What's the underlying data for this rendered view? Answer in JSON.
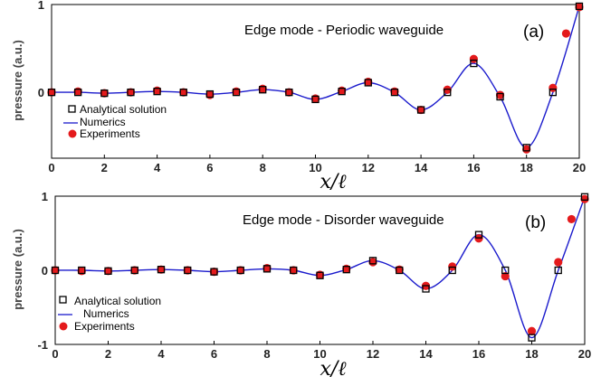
{
  "chart_data": [
    {
      "type": "line",
      "title": "Edge mode - Periodic waveguide",
      "panel_label": "(a)",
      "xlabel": "x/ℓ",
      "ylabel": "pressure (a.u.)",
      "xlim": [
        0,
        20
      ],
      "ylim": [
        -0.75,
        1.0
      ],
      "xticks": [
        0,
        2,
        4,
        6,
        8,
        10,
        12,
        14,
        16,
        18,
        20
      ],
      "yticks": [
        0,
        1
      ],
      "legend_position": "left",
      "colors": {
        "analytical": "#000000",
        "numerics": "#1a1acc",
        "experiments": "#e41a1c"
      },
      "series": [
        {
          "name": "Analytical solution",
          "marker": "open-square",
          "x": [
            0,
            1,
            2,
            3,
            4,
            5,
            6,
            7,
            8,
            9,
            10,
            11,
            12,
            13,
            14,
            15,
            16,
            17,
            18,
            19,
            20
          ],
          "y": [
            0,
            0,
            -0.01,
            0,
            0.01,
            0,
            -0.02,
            0,
            0.03,
            0,
            -0.08,
            0.01,
            0.11,
            0,
            -0.2,
            0,
            0.33,
            -0.05,
            -0.63,
            0,
            0.98
          ]
        },
        {
          "name": "Numerics",
          "marker": "line",
          "x": [
            0,
            1,
            2,
            3,
            4,
            5,
            6,
            7,
            8,
            9,
            10,
            11,
            12,
            13,
            14,
            15,
            16,
            17,
            18,
            19,
            20
          ],
          "y": [
            0,
            0,
            -0.01,
            0,
            0.01,
            0,
            -0.02,
            0,
            0.03,
            0,
            -0.08,
            0.01,
            0.11,
            0,
            -0.2,
            0,
            0.33,
            -0.05,
            -0.63,
            0,
            0.98
          ]
        },
        {
          "name": "Experiments",
          "marker": "filled-circle",
          "x": [
            0,
            1,
            2,
            3,
            4,
            5,
            6,
            7,
            8,
            9,
            10,
            11,
            12,
            13,
            14,
            15,
            16,
            17,
            18,
            19,
            19.5,
            20
          ],
          "y": [
            0,
            0.01,
            -0.01,
            0,
            0.02,
            0,
            -0.03,
            0.01,
            0.04,
            0,
            -0.07,
            0.02,
            0.12,
            0.01,
            -0.2,
            0.03,
            0.38,
            -0.03,
            -0.65,
            0.05,
            0.67,
            0.97
          ]
        }
      ]
    },
    {
      "type": "line",
      "title": "Edge mode - Disorder waveguide",
      "panel_label": "(b)",
      "xlabel": "x/ℓ",
      "ylabel": "pressure (a.u.)",
      "xlim": [
        0,
        20
      ],
      "ylim": [
        -1.0,
        1.0
      ],
      "xticks": [
        0,
        2,
        4,
        6,
        8,
        10,
        12,
        14,
        16,
        18,
        20
      ],
      "yticks": [
        -1,
        0,
        1
      ],
      "legend_position": "bottom-left",
      "colors": {
        "analytical": "#000000",
        "numerics": "#1a1acc",
        "experiments": "#e41a1c"
      },
      "series": [
        {
          "name": "Analytical solution",
          "marker": "open-square",
          "x": [
            0,
            1,
            2,
            3,
            4,
            5,
            6,
            7,
            8,
            9,
            10,
            11,
            12,
            13,
            14,
            15,
            16,
            17,
            18,
            19,
            20
          ],
          "y": [
            0,
            0,
            -0.01,
            0,
            0.01,
            0,
            -0.02,
            0,
            0.02,
            0,
            -0.07,
            0.01,
            0.13,
            0,
            -0.25,
            0,
            0.48,
            0,
            -0.91,
            0,
            0.99
          ]
        },
        {
          "name": "Numerics",
          "marker": "line",
          "x": [
            0,
            1,
            2,
            3,
            4,
            5,
            6,
            7,
            8,
            9,
            10,
            11,
            12,
            13,
            14,
            15,
            16,
            17,
            18,
            19,
            20
          ],
          "y": [
            0,
            0,
            -0.01,
            0,
            0.01,
            0,
            -0.02,
            0,
            0.02,
            0,
            -0.07,
            0.01,
            0.13,
            0,
            -0.25,
            0,
            0.48,
            0,
            -0.91,
            0,
            0.99
          ]
        },
        {
          "name": "Experiments",
          "marker": "filled-circle",
          "x": [
            0,
            1,
            2,
            3,
            4,
            5,
            6,
            7,
            8,
            9,
            10,
            11,
            12,
            13,
            14,
            15,
            16,
            17,
            18,
            19,
            19.5,
            20
          ],
          "y": [
            0,
            -0.01,
            -0.01,
            0,
            0.01,
            0,
            -0.02,
            0,
            0.03,
            0,
            -0.06,
            0.02,
            0.11,
            0.01,
            -0.21,
            0.05,
            0.43,
            -0.08,
            -0.82,
            0.11,
            0.69,
            0.96
          ]
        }
      ]
    }
  ]
}
